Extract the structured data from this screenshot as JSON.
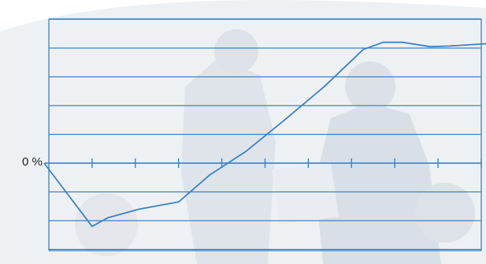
{
  "colors": {
    "line": "#3a82c6",
    "grid": "#3a82c6",
    "background_photo_tint": "#e8ecf0"
  },
  "background_image": "faded-office-photo-business-people",
  "chart_data": {
    "type": "line",
    "title": "",
    "xlabel": "",
    "ylabel": "",
    "y_tick_labels": [
      {
        "value": 0,
        "label": "0 %"
      }
    ],
    "grid": true,
    "legend": "none",
    "xlim": [
      0,
      10
    ],
    "ylim": [
      -3.2,
      5
    ],
    "x_ticks": [
      1,
      2,
      3,
      4,
      5,
      6,
      7,
      8,
      9,
      10
    ],
    "series": [
      {
        "x": [
          0,
          1,
          1.36,
          2.09,
          3,
          3.73,
          4.55,
          5.45,
          6.36,
          7.27,
          7.73,
          8.18,
          8.82,
          9.27,
          10
        ],
        "y": [
          0,
          -2.2,
          -1.9,
          -1.6,
          -1.35,
          -0.4,
          0.4,
          1.5,
          2.65,
          3.95,
          4.2,
          4.2,
          4.05,
          4.07,
          4.15
        ]
      }
    ]
  }
}
